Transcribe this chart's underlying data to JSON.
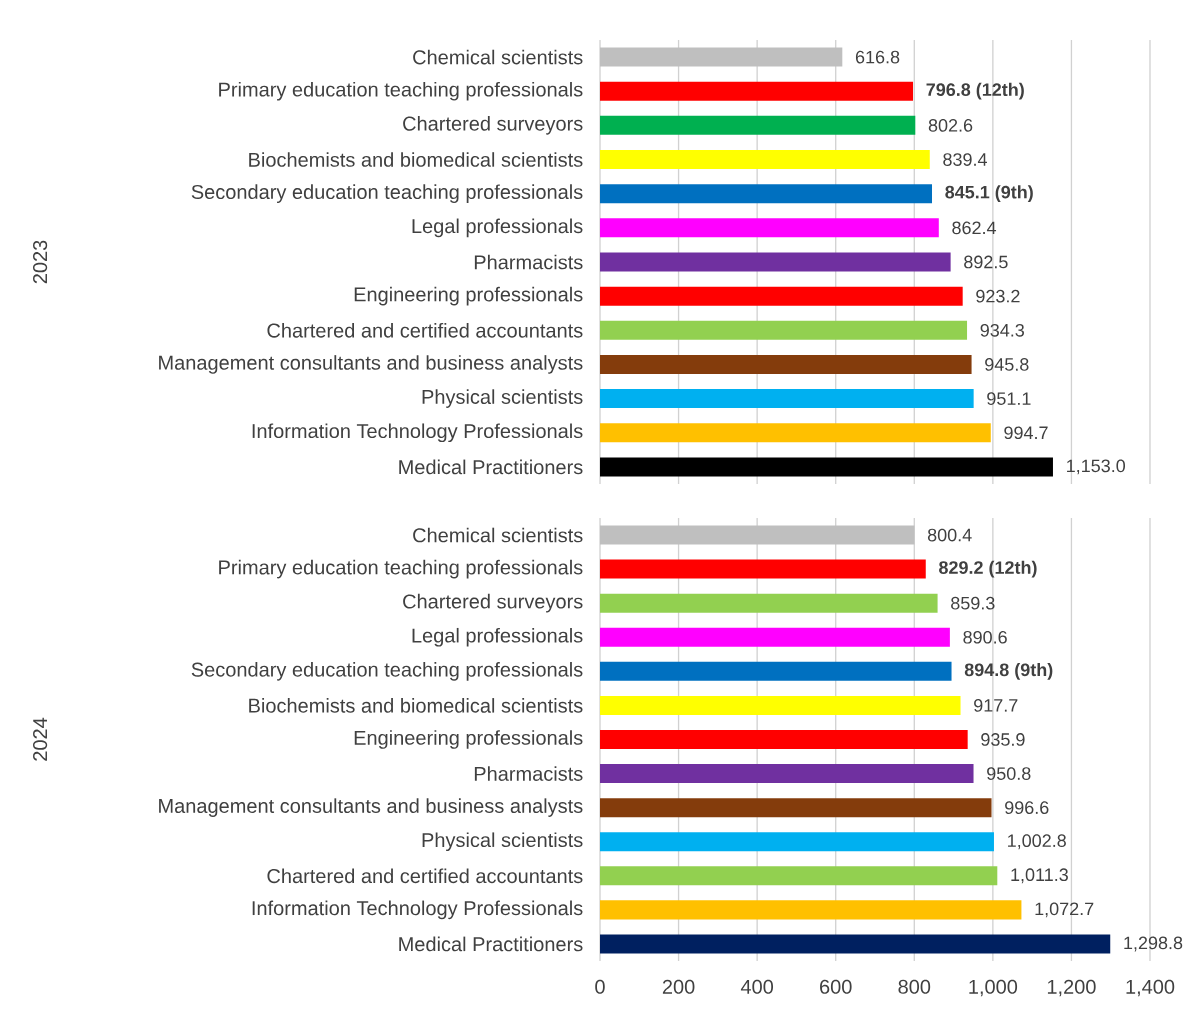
{
  "chart_data": [
    {
      "type": "bar",
      "orientation": "horizontal",
      "ylabel": "2023",
      "tick_labels": "y",
      "grid": "x",
      "categories": [
        "Chemical scientists",
        "Primary education teaching professionals",
        "Chartered surveyors",
        "Biochemists and biomedical scientists",
        "Secondary education teaching professionals",
        "Legal professionals",
        "Pharmacists",
        "Engineering professionals",
        "Chartered and certified accountants",
        "Management consultants and business analysts",
        "Physical scientists",
        "Information Technology Professionals",
        "Medical Practitioners"
      ],
      "values": [
        616.8,
        796.8,
        802.6,
        839.4,
        845.1,
        862.4,
        892.5,
        923.2,
        934.3,
        945.8,
        951.1,
        994.7,
        1153.0
      ],
      "value_labels": [
        "616.8",
        "**796.8 (12th)**",
        "802.6",
        "839.4",
        "**845.1 (9th)**",
        "862.4",
        "892.5",
        "923.2",
        "934.3",
        "945.8",
        "951.1",
        "994.7",
        "1,153.0"
      ],
      "colors": [
        "#bfbfbf",
        "#ff0000",
        "#00b050",
        "#ffff00",
        "#0070c0",
        "#ff00ff",
        "#7030a0",
        "#ff0000",
        "#92d050",
        "#843c0c",
        "#00b0f0",
        "#ffc000",
        "#000000"
      ],
      "xlim": [
        0,
        1400
      ],
      "xticks": [
        {
          "value": 0,
          "label": null
        },
        {
          "value": 200,
          "label": null
        },
        {
          "value": 400,
          "label": null
        },
        {
          "value": 600,
          "label": null
        },
        {
          "value": 800,
          "label": null
        },
        {
          "value": 1000,
          "label": null
        },
        {
          "value": 1200,
          "label": null
        },
        {
          "value": 1400,
          "label": null
        }
      ]
    },
    {
      "type": "bar",
      "orientation": "horizontal",
      "ylabel": "2024",
      "grid": "x",
      "categories": [
        "Chemical scientists",
        "Primary education teaching professionals",
        "Chartered surveyors",
        "Legal professionals",
        "Secondary education teaching professionals",
        "Biochemists and biomedical scientists",
        "Engineering professionals",
        "Pharmacists",
        "Management consultants and business analysts",
        "Physical scientists",
        "Chartered and certified accountants",
        "Information Technology Professionals",
        "Medical Practitioners"
      ],
      "values": [
        800.4,
        829.2,
        859.3,
        890.6,
        894.8,
        917.7,
        935.9,
        950.8,
        996.6,
        1002.8,
        1011.3,
        1072.7,
        1298.8
      ],
      "value_labels": [
        "800.4",
        "**829.2 (12th)**",
        "859.3",
        "890.6",
        "**894.8 (9th)**",
        "917.7",
        "935.9",
        "950.8",
        "996.6",
        "1,002.8",
        "1,011.3",
        "1,072.7",
        "1,298.8"
      ],
      "colors": [
        "#bfbfbf",
        "#ff0000",
        "#92d050",
        "#ff00ff",
        "#0070c0",
        "#ffff00",
        "#ff0000",
        "#7030a0",
        "#843c0c",
        "#00b0f0",
        "#92d050",
        "#ffc000",
        "#002060"
      ],
      "xlim": [
        0,
        1400
      ],
      "xticks": [
        0,
        200,
        400,
        600,
        800,
        {
          "value": 1000,
          "label": "1,000"
        },
        {
          "value": 1200,
          "label": "1,200"
        },
        {
          "value": 1400,
          "label": "1,400"
        }
      ]
    }
  ]
}
